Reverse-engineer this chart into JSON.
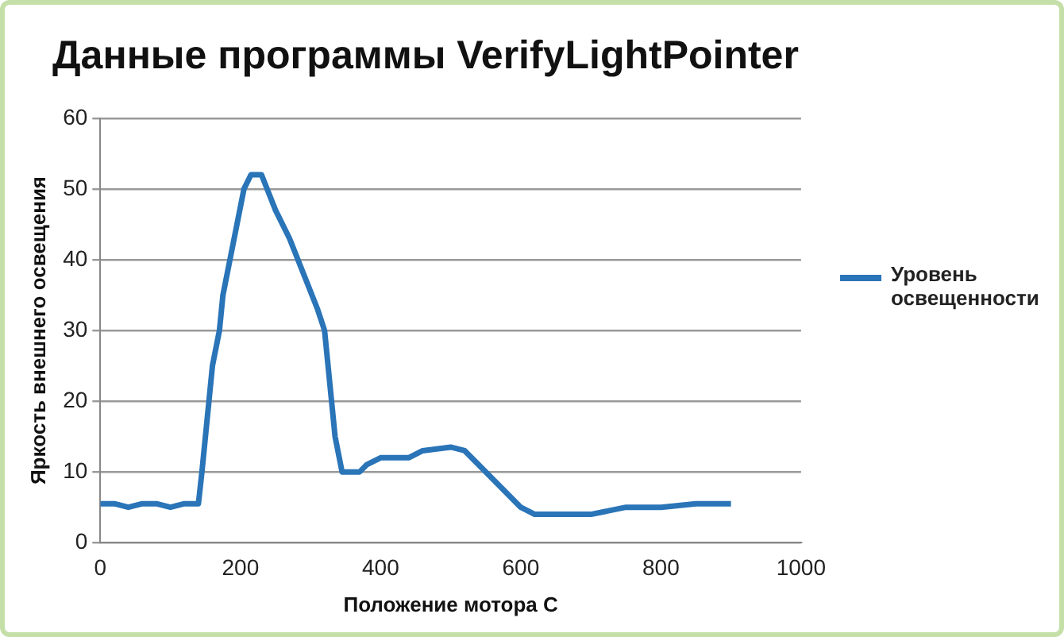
{
  "chart_data": {
    "type": "line",
    "title": "Данные программы VerifyLightPointer",
    "xlabel": "Положение мотора С",
    "ylabel": "Яркость внешнего освещения",
    "x": [
      0,
      20,
      40,
      60,
      80,
      100,
      120,
      140,
      145,
      150,
      160,
      170,
      175,
      185,
      195,
      205,
      215,
      230,
      250,
      270,
      290,
      310,
      320,
      330,
      335,
      345,
      370,
      380,
      400,
      440,
      460,
      500,
      520,
      540,
      570,
      600,
      620,
      660,
      700,
      750,
      800,
      850,
      900
    ],
    "series": [
      {
        "name": "Уровень освещенности",
        "color": "#2a74b8",
        "values": [
          5.5,
          5.5,
          5,
          5.5,
          5.5,
          5,
          5.5,
          5.5,
          10,
          15,
          25,
          30,
          35,
          40,
          45,
          50,
          52,
          52,
          47,
          43,
          38,
          33,
          30,
          20,
          15,
          10,
          10,
          11,
          12,
          12,
          13,
          13.5,
          13,
          11,
          8,
          5,
          4,
          4,
          4,
          5,
          5,
          5.5,
          5.5
        ]
      }
    ],
    "xlim": [
      0,
      1000
    ],
    "xticks": [
      0,
      200,
      400,
      600,
      800,
      1000
    ],
    "ylim": [
      0,
      60
    ],
    "yticks": [
      0,
      10,
      20,
      30,
      40,
      50,
      60
    ],
    "grid": "y",
    "legend": "right",
    "marker": "none",
    "line_style": "solid"
  }
}
